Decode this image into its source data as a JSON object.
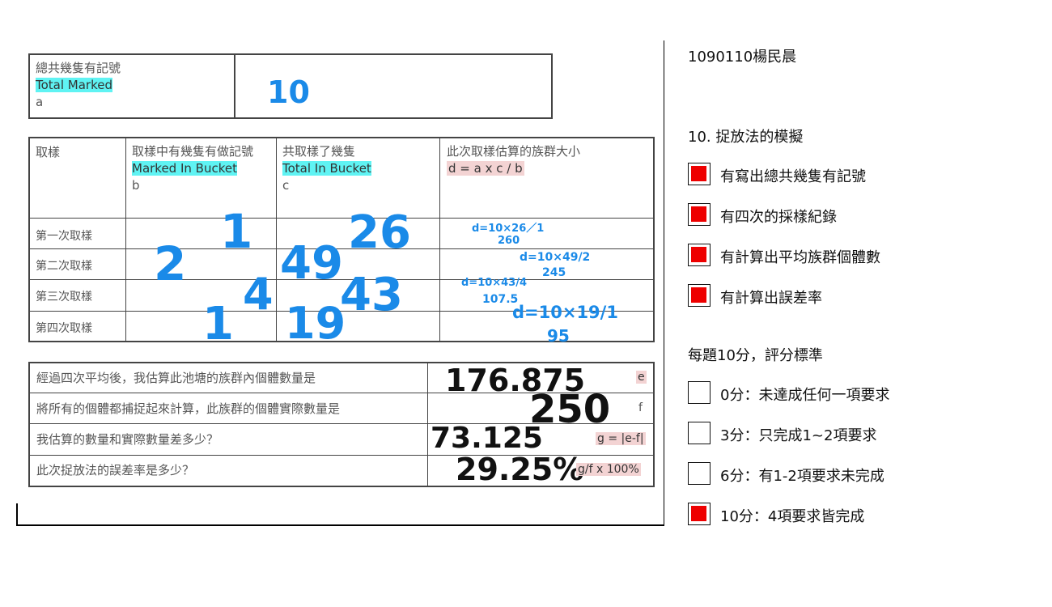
{
  "worksheet": {
    "total_marked": {
      "label_zh": "總共幾隻有記號",
      "label_en": "Total Marked",
      "symbol": "a",
      "value": "10"
    },
    "headers": {
      "sample": "取樣",
      "marked_zh": "取樣中有幾隻有做記號",
      "marked_en": "Marked In Bucket",
      "marked_sym": "b",
      "total_zh": "共取樣了幾隻",
      "total_en": "Total In Bucket",
      "total_sym": "c",
      "estimate_zh": "此次取樣估算的族群大小",
      "estimate_formula": "d = a x c / b"
    },
    "rows": [
      {
        "label": "第一次取樣",
        "b": "1",
        "c": "26",
        "calc": "d=10×26／1",
        "result": "260"
      },
      {
        "label": "第二次取樣",
        "b": "2",
        "c": "49",
        "calc": "d=10×49/2",
        "result": "245"
      },
      {
        "label": "第三次取樣",
        "b": "4",
        "c": "43",
        "calc": "d=10×43/4",
        "result": "107.5"
      },
      {
        "label": "第四次取樣",
        "b": "1",
        "c": "19",
        "calc": "d=10×19/1",
        "result": "95"
      }
    ],
    "summary": [
      {
        "question": "經過四次平均後，我估算此池塘的族群內個體數量是",
        "answer": "176.875",
        "tag": "e"
      },
      {
        "question": "將所有的個體都捕捉起來計算，此族群的個體實際數量是",
        "answer": "250",
        "tag": "f"
      },
      {
        "question": "我估算的數量和實際數量差多少？",
        "answer": "73.125",
        "tag": "g = |e-f|"
      },
      {
        "question": "此次捉放法的誤差率是多少？",
        "answer": "29.25%",
        "tag": "g/f x 100%"
      }
    ]
  },
  "rubric": {
    "student": "1090110楊民晨",
    "title": "10. 捉放法的模擬",
    "criteria": [
      {
        "label": "有寫出總共幾隻有記號",
        "checked": true
      },
      {
        "label": "有四次的採樣紀錄",
        "checked": true
      },
      {
        "label": "有計算出平均族群個體數",
        "checked": true
      },
      {
        "label": "有計算出誤差率",
        "checked": true
      }
    ],
    "scoring_title": "每題10分，評分標準",
    "scores": [
      {
        "label": "0分：未達成任何一項要求",
        "checked": false
      },
      {
        "label": "3分：只完成1~2項要求",
        "checked": false
      },
      {
        "label": "6分：有1-2項要求未完成",
        "checked": false
      },
      {
        "label": "10分：4項要求皆完成",
        "checked": true
      }
    ],
    "colors": {
      "check_fill": "#ee0000",
      "handwriting_blue": "#1a8ae8",
      "highlight_cyan": "#5ff3f3",
      "highlight_pink": "#f3d3d3"
    }
  }
}
